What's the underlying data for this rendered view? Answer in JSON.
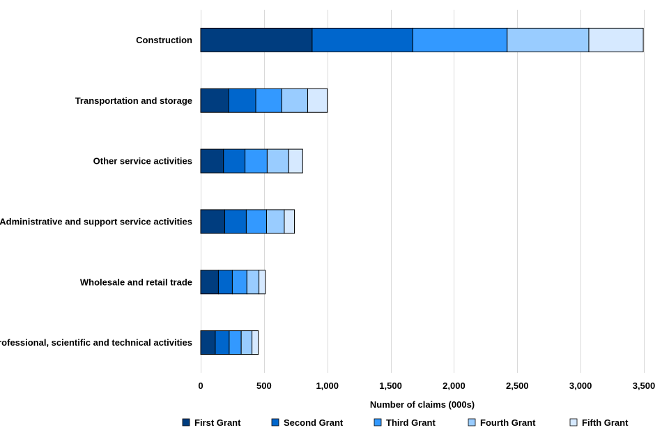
{
  "chart_data": {
    "type": "bar",
    "orientation": "horizontal",
    "stacked": true,
    "title": "",
    "xlabel": "Number of claims (000s)",
    "ylabel": "",
    "xlim": [
      0,
      3500
    ],
    "xticks": [
      0,
      500,
      1000,
      1500,
      2000,
      2500,
      3000,
      3500
    ],
    "xtick_labels": [
      "0",
      "500",
      "1,000",
      "1,500",
      "2,000",
      "2,500",
      "3,000",
      "3,500"
    ],
    "grid": true,
    "legend_position": "bottom",
    "categories": [
      "Construction",
      "Transportation and storage",
      "Other service activities",
      "Administrative and support service activities",
      "Wholesale and retail trade",
      "Professional, scientific and technical activities"
    ],
    "series": [
      {
        "name": "First Grant",
        "color": "#003d7f",
        "values": [
          880,
          220,
          180,
          190,
          140,
          115
        ]
      },
      {
        "name": "Second Grant",
        "color": "#0066cc",
        "values": [
          795,
          215,
          170,
          170,
          110,
          110
        ]
      },
      {
        "name": "Third Grant",
        "color": "#3399ff",
        "values": [
          745,
          205,
          175,
          160,
          115,
          95
        ]
      },
      {
        "name": "Fourth Grant",
        "color": "#99ccff",
        "values": [
          645,
          205,
          170,
          140,
          95,
          85
        ]
      },
      {
        "name": "Fifth Grant",
        "color": "#d6e9ff",
        "values": [
          430,
          155,
          110,
          80,
          50,
          50
        ]
      }
    ]
  }
}
